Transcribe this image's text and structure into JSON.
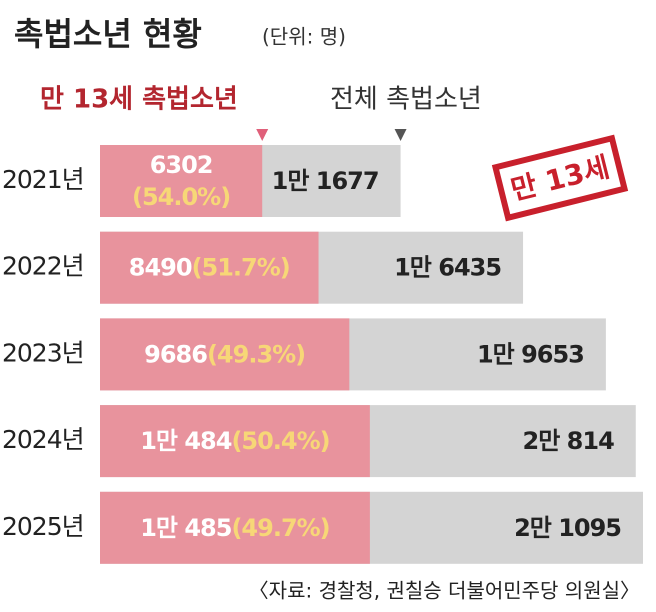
{
  "title": "촉법소년 현황",
  "unit": "(단위: 명)",
  "source": "〈자료: 경찰청, 권칠승 더불어민주당 의원실〉",
  "stamp": "만 13세",
  "chart_data": {
    "type": "bar",
    "orientation": "horizontal",
    "categories": [
      "2021년",
      "2022년",
      "2023년",
      "2024년",
      "2025년"
    ],
    "series": [
      {
        "name": "전체 촉법소년",
        "color": "#d4d4d4",
        "values": [
          11677,
          16435,
          19653,
          20814,
          21095
        ],
        "value_labels": [
          "1만 1677",
          "1만 6435",
          "1만 9653",
          "2만 814",
          "2만 1095"
        ]
      },
      {
        "name": "만 13세 촉법소년",
        "color": "#e8939d",
        "values": [
          6302,
          8490,
          9686,
          10484,
          10485
        ],
        "value_labels": [
          "6302",
          "8490",
          "9686",
          "1만 484",
          "1만 485"
        ],
        "shares": [
          54.0,
          51.7,
          49.3,
          50.4,
          49.7
        ],
        "share_labels": [
          "(54.0%)",
          "(51.7%)",
          "(49.3%)",
          "(50.4%)",
          "(49.7%)"
        ]
      }
    ]
  }
}
